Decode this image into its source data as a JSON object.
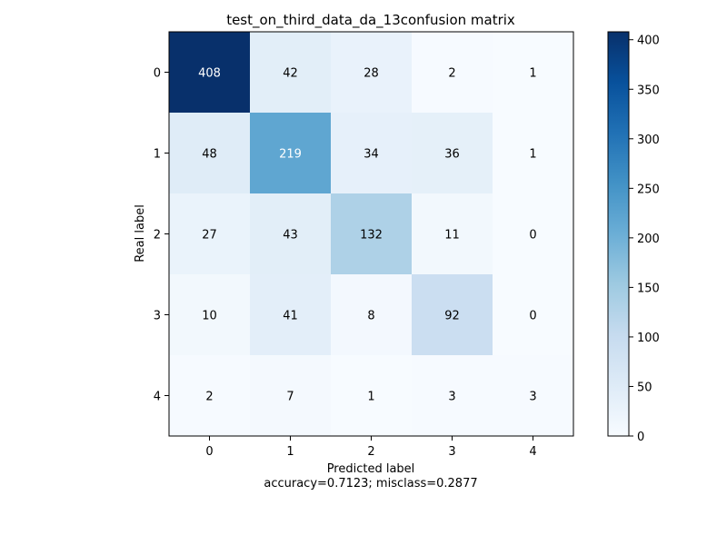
{
  "chart_data": {
    "type": "heatmap",
    "title": "test_on_third_data_da_13confusion matrix",
    "xlabel": "Predicted label",
    "xlabel_sub": "accuracy=0.7123; misclass=0.2877",
    "ylabel": "Real label",
    "x_categories": [
      "0",
      "1",
      "2",
      "3",
      "4"
    ],
    "y_categories": [
      "0",
      "1",
      "2",
      "3",
      "4"
    ],
    "values": [
      [
        408,
        42,
        28,
        2,
        1
      ],
      [
        48,
        219,
        34,
        36,
        1
      ],
      [
        27,
        43,
        132,
        11,
        0
      ],
      [
        10,
        41,
        8,
        92,
        0
      ],
      [
        2,
        7,
        1,
        3,
        3
      ]
    ],
    "colormap": "Blues",
    "colorbar": {
      "range": [
        0,
        408
      ],
      "ticks": [
        0,
        50,
        100,
        150,
        200,
        250,
        300,
        350,
        400
      ]
    },
    "text_threshold": 204
  }
}
